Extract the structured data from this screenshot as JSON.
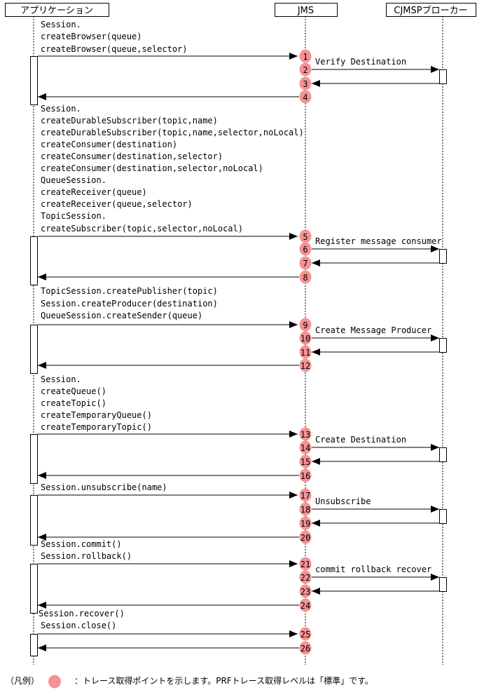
{
  "participants": [
    {
      "label": "アプリケーション"
    },
    {
      "label": "JMS"
    },
    {
      "label": "CJMSPブローカー"
    }
  ],
  "trace_point_color": "#f59393",
  "groups": [
    {
      "calls": [
        "Session.",
        "createBrowser(queue)",
        "createBrowser(queue,selector)"
      ],
      "broker_message": "Verify Destination",
      "points": [
        "1",
        "2",
        "3",
        "4"
      ]
    },
    {
      "calls": [
        "Session.",
        "createDurableSubscriber(topic,name)",
        "createDurableSubscriber(topic,name,selector,noLocal)",
        "createConsumer(destination)",
        "createConsumer(destination,selector)",
        "createConsumer(destination,selector,noLocal)",
        "QueueSession.",
        "createReceiver(queue)",
        "createReceiver(queue,selector)",
        "TopicSession.",
        "createSubscriber(topic,selector,noLocal)"
      ],
      "broker_message": "Register message consumer",
      "points": [
        "5",
        "6",
        "7",
        "8"
      ]
    },
    {
      "calls": [
        "TopicSession.createPublisher(topic)",
        "Session.createProducer(destination)",
        "QueueSession.createSender(queue)"
      ],
      "broker_message": "Create Message Producer",
      "points": [
        "9",
        "10",
        "11",
        "12"
      ]
    },
    {
      "calls": [
        "Session.",
        "createQueue()",
        "createTopic()",
        "createTemporaryQueue()",
        "createTemporaryTopic()"
      ],
      "broker_message": "Create Destination",
      "points": [
        "13",
        "14",
        "15",
        "16"
      ]
    },
    {
      "calls": [
        "Session.unsubscribe(name)"
      ],
      "broker_message": "Unsubscribe",
      "points": [
        "17",
        "18",
        "19",
        "20"
      ]
    },
    {
      "calls": [
        "Session.commit()",
        "Session.rollback()"
      ],
      "calls_after": [
        "Session.recover()"
      ],
      "broker_message": "commit rollback recover",
      "points": [
        "21",
        "22",
        "23",
        "24"
      ]
    },
    {
      "calls": [
        "Session.close()"
      ],
      "points": [
        "25",
        "26"
      ]
    }
  ],
  "legend": {
    "label": "（凡例）",
    "description": "：トレース取得ポイントを示します。PRFトレース取得レベルは「標準」です。"
  }
}
